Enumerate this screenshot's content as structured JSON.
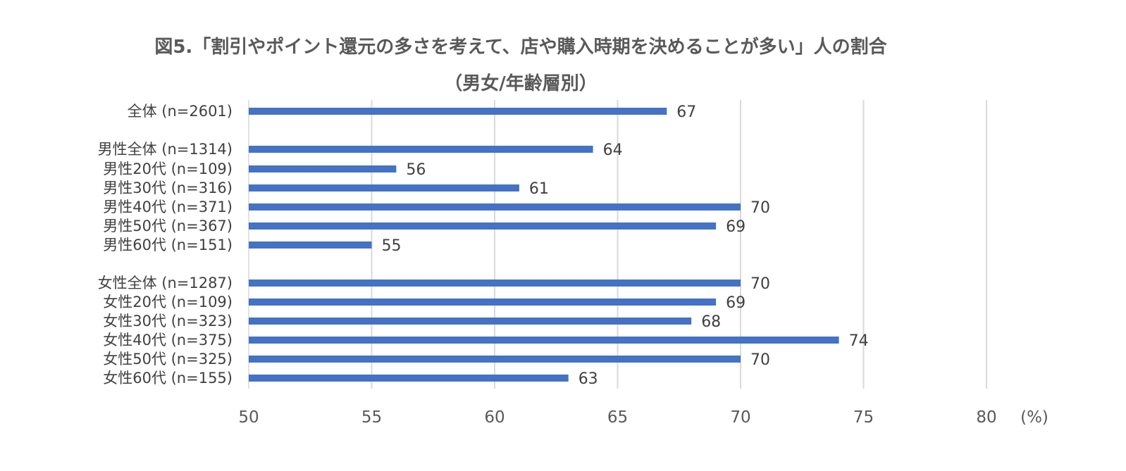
{
  "title_line1": "図5.「割引やポイント還元の多さを考えて、店や購入時期を決めることが多い」人の割合",
  "title_line2": "（男女/年齢層別）",
  "chart_data": {
    "type": "bar",
    "orientation": "horizontal",
    "unit_label": "(%)",
    "xlim": [
      50,
      80
    ],
    "ticks": [
      50,
      55,
      60,
      65,
      70,
      75,
      80
    ],
    "grid": true,
    "bar_color": "#4472C4",
    "categories": [
      "全体 (n=2601)",
      "男性全体 (n=1314)",
      "男性20代 (n=109)",
      "男性30代 (n=316)",
      "男性40代 (n=371)",
      "男性50代 (n=367)",
      "男性60代 (n=151)",
      "女性全体 (n=1287)",
      "女性20代 (n=109)",
      "女性30代 (n=323)",
      "女性40代 (n=375)",
      "女性50代 (n=325)",
      "女性60代 (n=155)"
    ],
    "values": [
      67,
      64,
      56,
      61,
      70,
      69,
      55,
      70,
      69,
      68,
      74,
      70,
      63
    ],
    "value_labels": [
      "67",
      "64",
      "56",
      "61",
      "70",
      "69",
      "55",
      "70",
      "69",
      "68",
      "74",
      "70",
      "63"
    ]
  }
}
